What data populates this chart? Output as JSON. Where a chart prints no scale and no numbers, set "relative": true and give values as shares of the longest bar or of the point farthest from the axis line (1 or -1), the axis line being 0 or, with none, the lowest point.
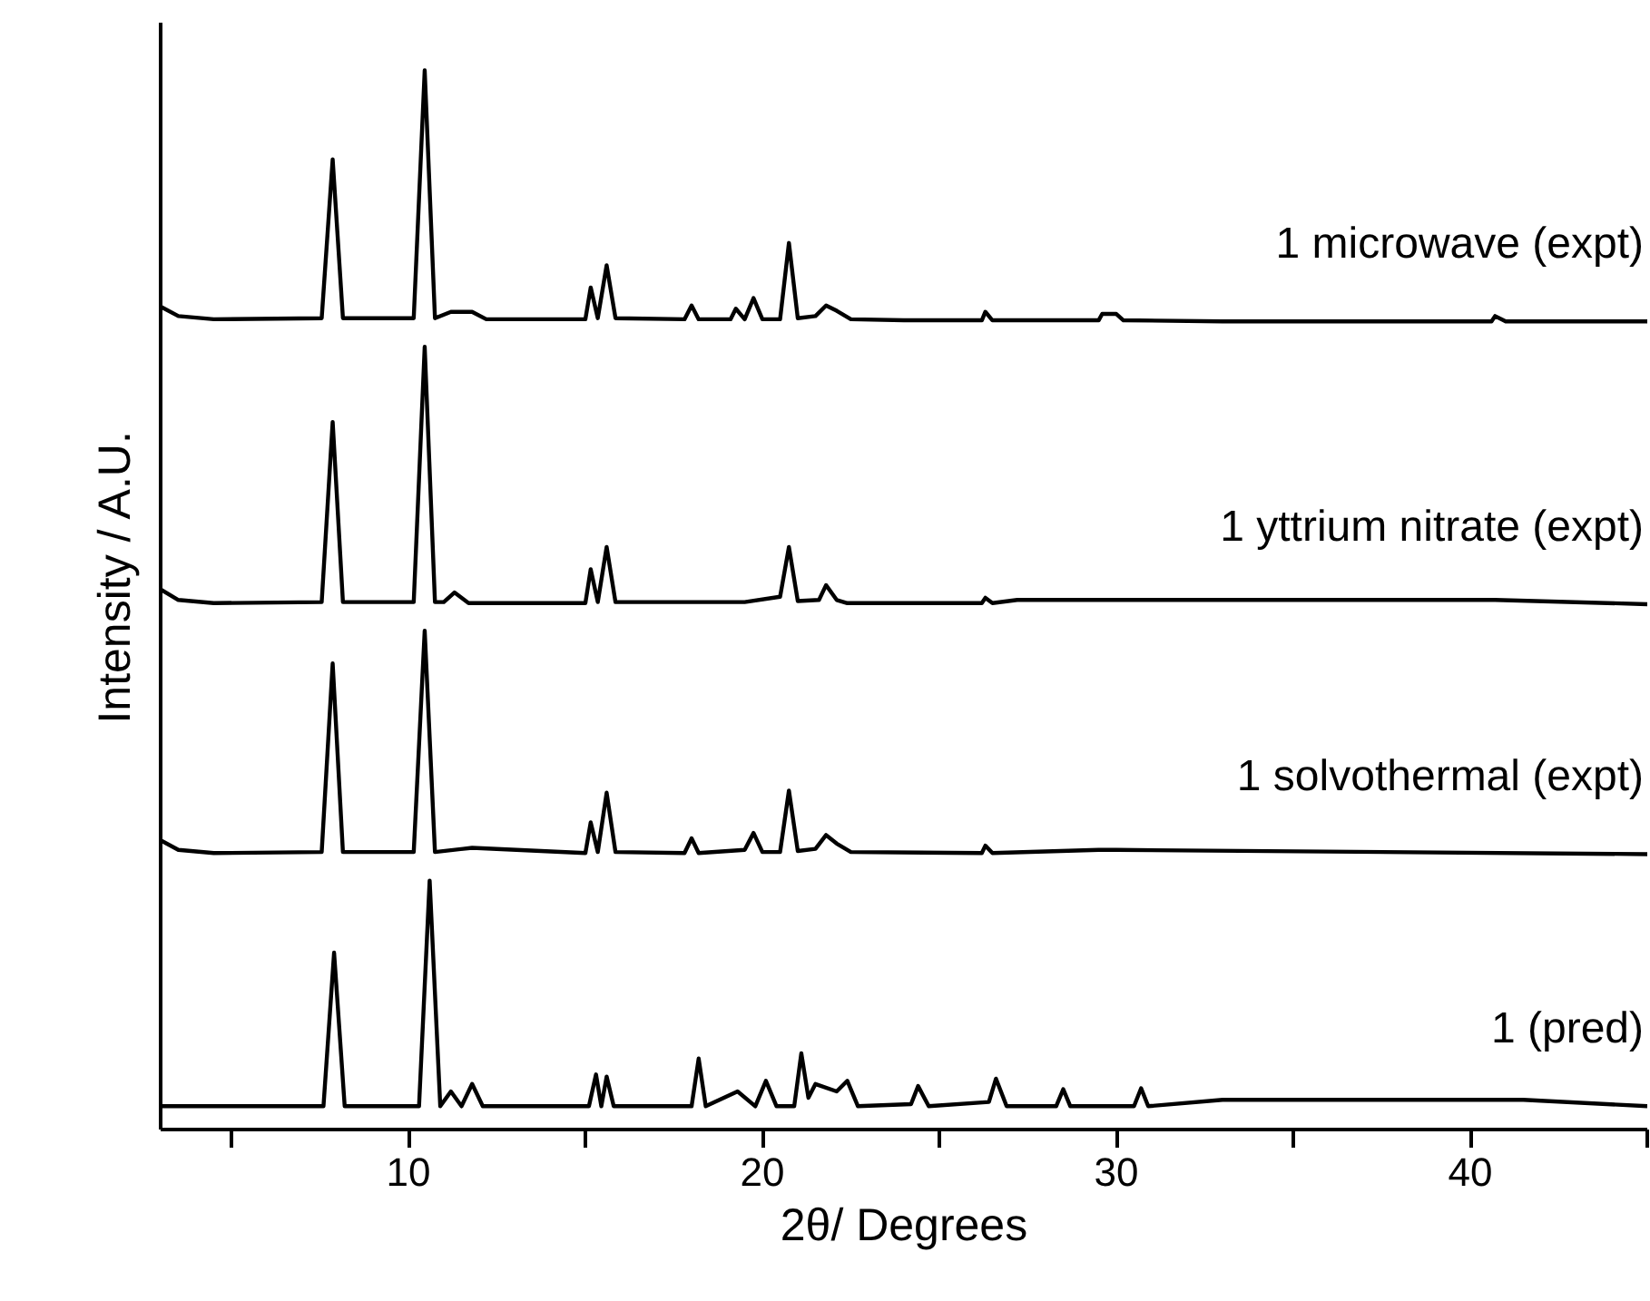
{
  "chart_data": {
    "type": "line",
    "xlabel": "2θ/ Degrees",
    "ylabel": "Intensity / A.U.",
    "relative": true,
    "xlim": [
      3,
      45
    ],
    "xticks": [
      {
        "value": 5,
        "label": null
      },
      10,
      {
        "value": 15,
        "label": null
      },
      20,
      {
        "value": 25,
        "label": null
      },
      30,
      {
        "value": 35,
        "label": null
      },
      40,
      {
        "value": 45,
        "label": null
      }
    ],
    "grid": false,
    "marker": "none",
    "line_style": "solid",
    "series": [
      {
        "name": "1 microwave (expt)",
        "color": "#000000",
        "x": [
          3.0,
          3.5,
          4.5,
          7.55,
          7.86,
          8.15,
          10.15,
          10.46,
          10.75,
          11.2,
          11.8,
          12.2,
          15.0,
          15.15,
          15.35,
          15.6,
          15.85,
          17.8,
          18.0,
          18.2,
          19.1,
          19.25,
          19.5,
          19.75,
          20.0,
          20.5,
          20.75,
          21.0,
          21.5,
          21.8,
          22.1,
          22.5,
          24.0,
          26.2,
          26.3,
          26.5,
          29.5,
          29.6,
          30.0,
          30.2,
          33,
          40.6,
          40.7,
          41,
          45
        ],
        "values": [
          0.777,
          0.768,
          0.765,
          0.766,
          0.916,
          0.766,
          0.766,
          1.0,
          0.766,
          0.772,
          0.772,
          0.765,
          0.765,
          0.795,
          0.766,
          0.816,
          0.766,
          0.765,
          0.778,
          0.765,
          0.765,
          0.775,
          0.765,
          0.785,
          0.765,
          0.765,
          0.837,
          0.766,
          0.768,
          0.778,
          0.773,
          0.765,
          0.764,
          0.764,
          0.772,
          0.764,
          0.764,
          0.77,
          0.77,
          0.764,
          0.763,
          0.763,
          0.768,
          0.763,
          0.763
        ]
      },
      {
        "name": "1 yttrium nitrate (expt)",
        "color": "#000000",
        "x": [
          3.0,
          3.5,
          4.5,
          7.55,
          7.86,
          8.15,
          10.15,
          10.46,
          10.75,
          11.0,
          11.3,
          11.7,
          15.0,
          15.15,
          15.35,
          15.6,
          15.85,
          19.5,
          20.5,
          20.75,
          21.0,
          21.6,
          21.8,
          22.1,
          22.4,
          26.2,
          26.3,
          26.5,
          27.2,
          29.5,
          40.7,
          45
        ],
        "values": [
          0.51,
          0.5,
          0.497,
          0.498,
          0.668,
          0.498,
          0.498,
          0.739,
          0.498,
          0.498,
          0.507,
          0.497,
          0.497,
          0.529,
          0.498,
          0.55,
          0.498,
          0.498,
          0.503,
          0.55,
          0.499,
          0.5,
          0.514,
          0.5,
          0.497,
          0.497,
          0.502,
          0.497,
          0.5,
          0.5,
          0.5,
          0.496
        ]
      },
      {
        "name": "1 solvothermal (expt)",
        "color": "#000000",
        "x": [
          3.0,
          3.5,
          4.5,
          7.55,
          7.86,
          8.15,
          10.15,
          10.46,
          10.75,
          11.8,
          15.0,
          15.15,
          15.35,
          15.6,
          15.85,
          17.8,
          18.0,
          18.2,
          19.5,
          19.75,
          20.0,
          20.5,
          20.75,
          21.0,
          21.5,
          21.8,
          22.1,
          22.5,
          26.2,
          26.3,
          26.5,
          29.5,
          30.0,
          45
        ],
        "values": [
          0.273,
          0.264,
          0.261,
          0.262,
          0.44,
          0.262,
          0.262,
          0.471,
          0.262,
          0.266,
          0.261,
          0.29,
          0.262,
          0.318,
          0.262,
          0.261,
          0.275,
          0.261,
          0.264,
          0.28,
          0.262,
          0.262,
          0.32,
          0.263,
          0.265,
          0.278,
          0.27,
          0.262,
          0.261,
          0.268,
          0.261,
          0.264,
          0.264,
          0.26
        ]
      },
      {
        "name": "1 (pred)",
        "color": "#000000",
        "x": [
          3.0,
          7.6,
          7.9,
          8.2,
          10.3,
          10.6,
          10.9,
          11.2,
          11.5,
          11.8,
          12.1,
          15.1,
          15.3,
          15.45,
          15.6,
          15.8,
          18.0,
          18.2,
          18.4,
          19.3,
          19.8,
          20.1,
          20.4,
          20.9,
          21.1,
          21.3,
          21.5,
          22.1,
          22.4,
          22.7,
          24.2,
          24.4,
          24.7,
          26.4,
          26.6,
          26.9,
          28.3,
          28.5,
          28.7,
          30.5,
          30.7,
          30.9,
          33.0,
          41.5,
          45
        ],
        "values": [
          0.022,
          0.022,
          0.167,
          0.022,
          0.022,
          0.235,
          0.022,
          0.036,
          0.022,
          0.043,
          0.022,
          0.022,
          0.052,
          0.022,
          0.05,
          0.022,
          0.022,
          0.067,
          0.022,
          0.036,
          0.022,
          0.046,
          0.022,
          0.022,
          0.072,
          0.03,
          0.043,
          0.036,
          0.046,
          0.022,
          0.024,
          0.041,
          0.022,
          0.026,
          0.048,
          0.022,
          0.022,
          0.038,
          0.022,
          0.022,
          0.039,
          0.022,
          0.028,
          0.028,
          0.022
        ]
      }
    ]
  }
}
